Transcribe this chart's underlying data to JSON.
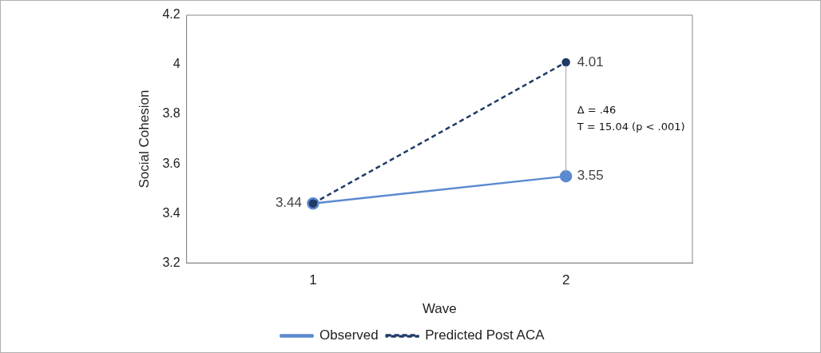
{
  "chart_data": {
    "type": "line",
    "xlabel": "Wave",
    "ylabel": "Social Cohesion",
    "categories": [
      "1",
      "2"
    ],
    "series": [
      {
        "name": "Observed",
        "color": "#5b8ad0",
        "values": [
          3.44,
          3.55
        ],
        "value_labels": [
          null,
          "3.55"
        ],
        "line_style": "solid"
      },
      {
        "name": "Predicted Post ACA",
        "color": "#1f3a66",
        "values": [
          3.44,
          4.01
        ],
        "value_labels": [
          "3.44",
          "4.01"
        ],
        "line_style": "dashed"
      }
    ],
    "ylim": [
      3.2,
      4.2
    ],
    "yticks": [
      3.2,
      3.4,
      3.6,
      3.8,
      4,
      4.2
    ],
    "grid": false,
    "legend": "bottom",
    "marker": "circle",
    "annotations": [
      "Δ = .46",
      "T = 15.04 (p < .001)"
    ]
  }
}
